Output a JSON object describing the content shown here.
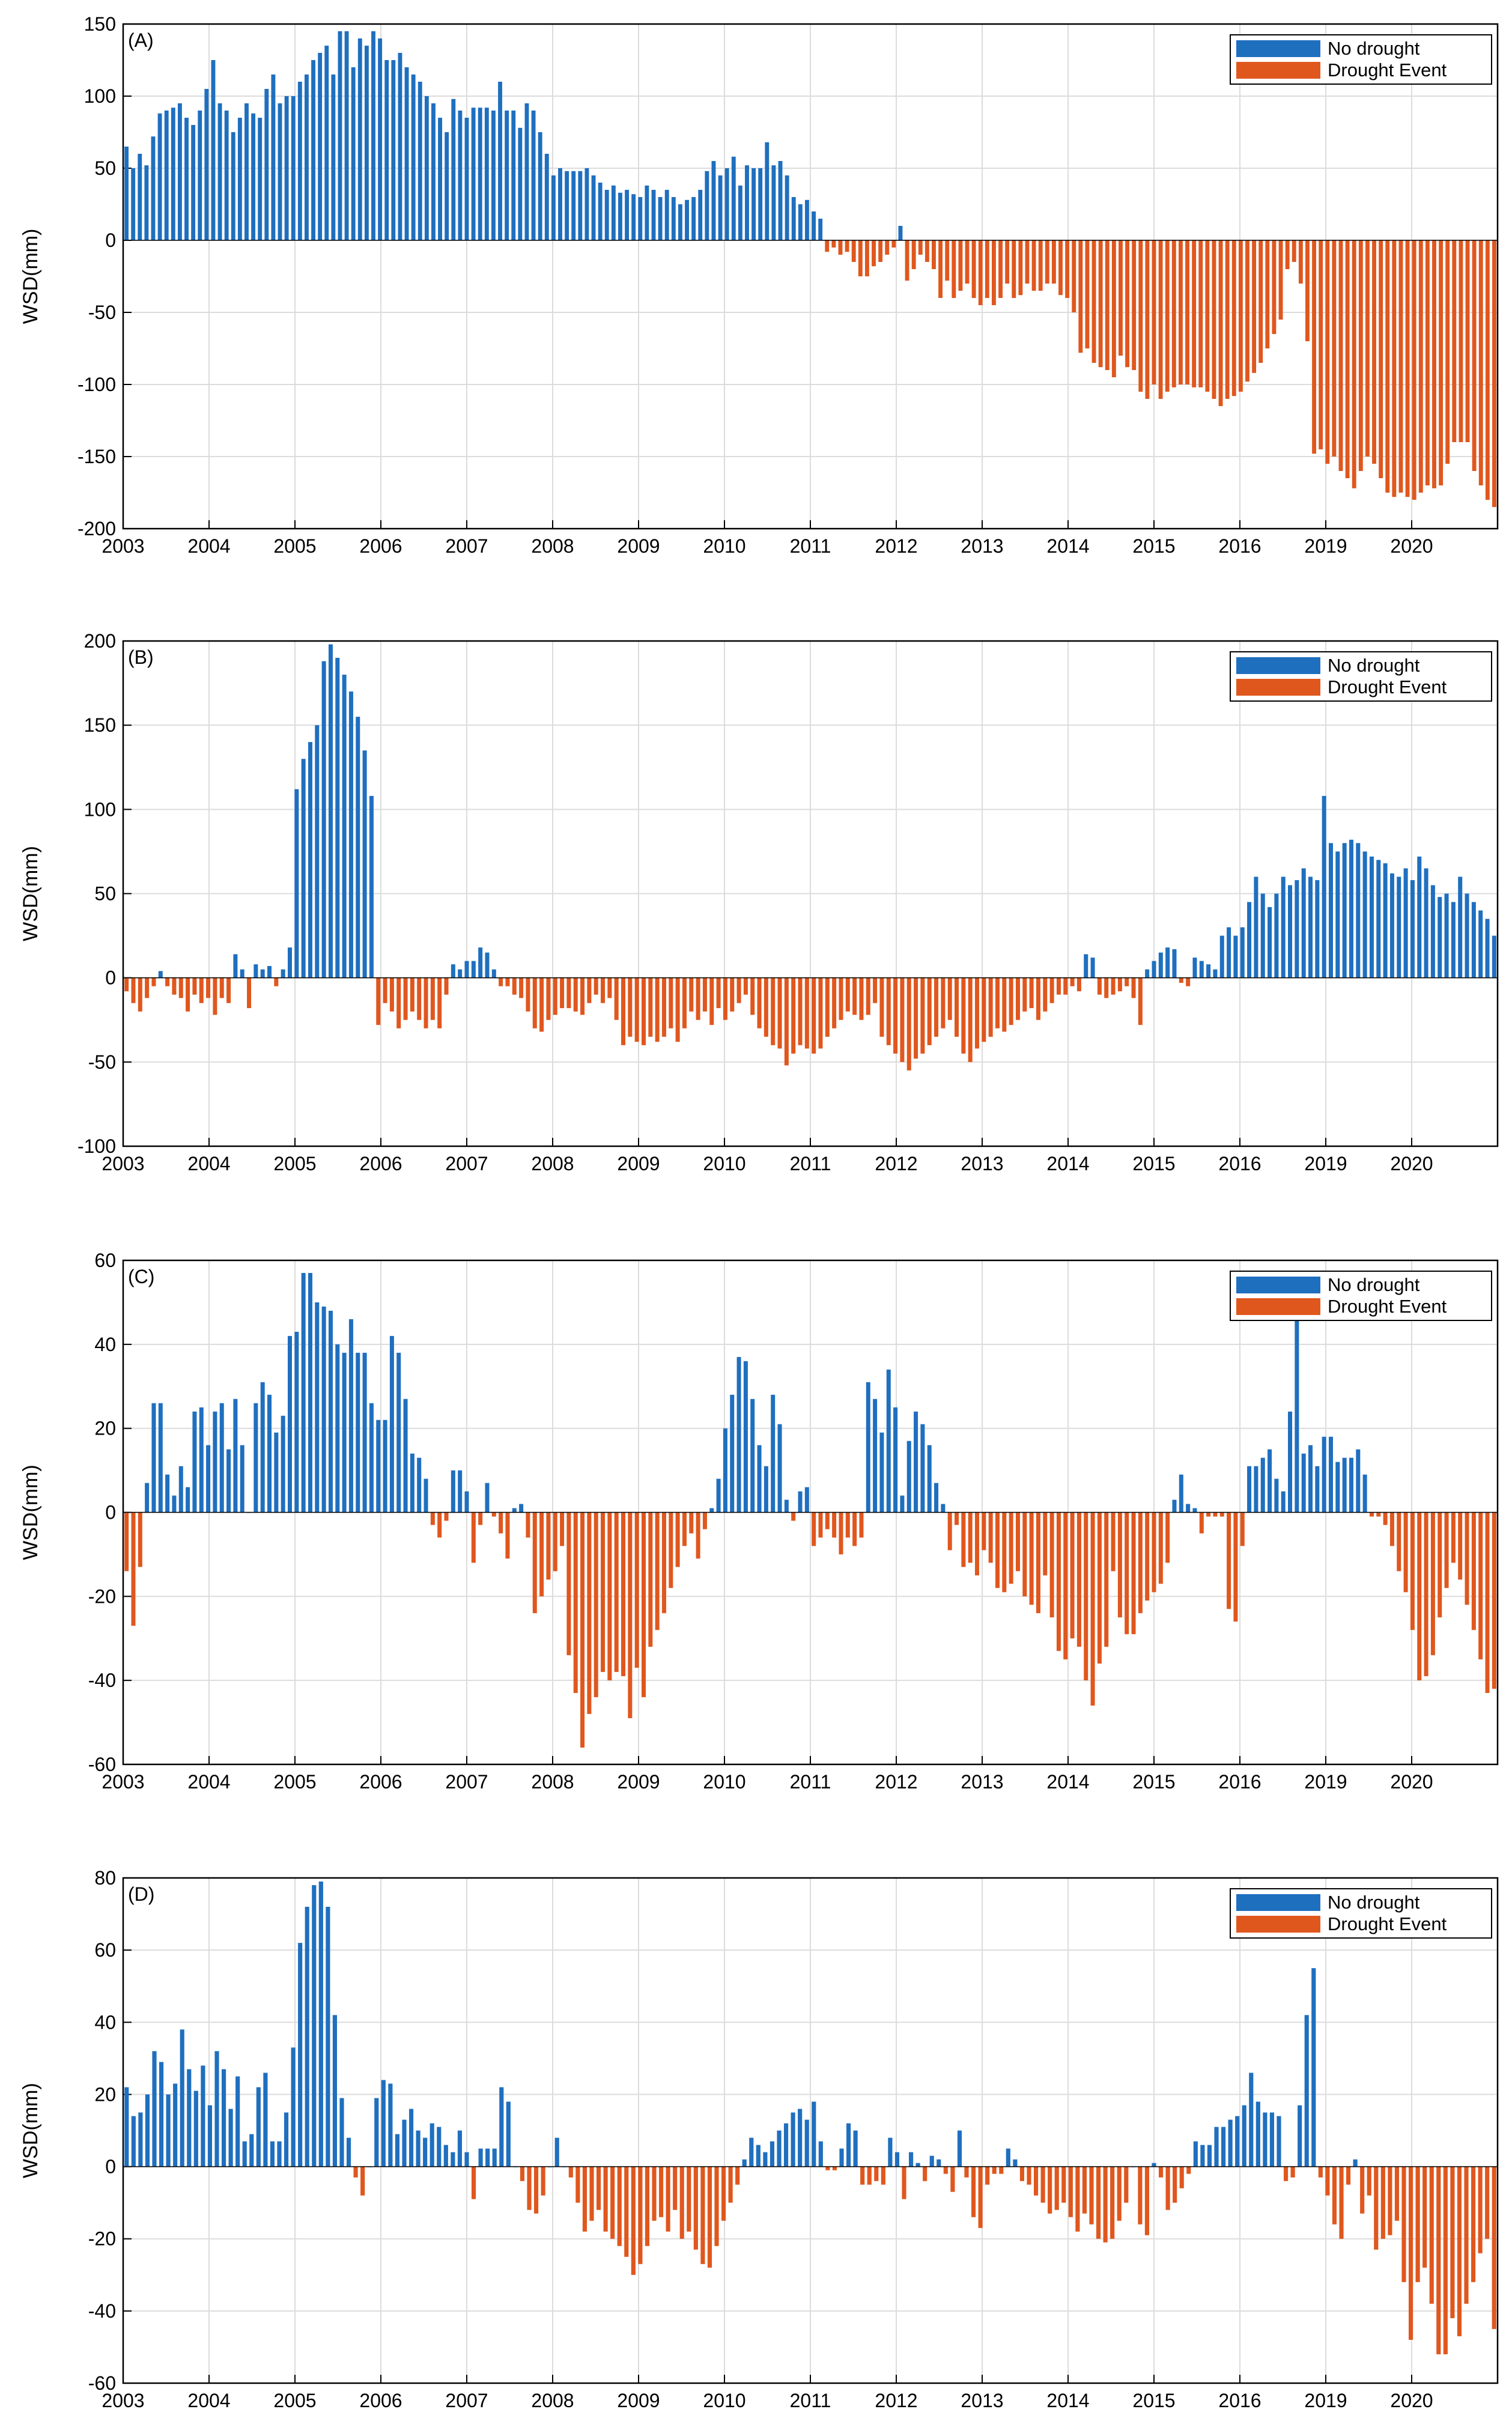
{
  "colors": {
    "no_drought": "#1f6fbf",
    "drought": "#e0571e",
    "grid": "#dcdcdc",
    "axis": "#000000"
  },
  "chart_data": [
    {
      "type": "bar",
      "panel_label": "(A)",
      "title": "",
      "xlabel": "",
      "ylabel": "WSD(mm)",
      "ylim": [
        -200,
        150
      ],
      "yticks": [
        150,
        100,
        50,
        0,
        -50,
        -100,
        -150,
        -200
      ],
      "xtick_labels": [
        "2003",
        "2004",
        "2005",
        "2006",
        "2007",
        "2008",
        "2009",
        "2010",
        "2011",
        "2012",
        "2013",
        "2014",
        "2015",
        "2016",
        "2019",
        "2020"
      ],
      "legend": {
        "position": "top-right",
        "entries": [
          "No drought",
          "Drought Event"
        ]
      },
      "series": [
        {
          "name": "WSD",
          "values": [
            65,
            50,
            60,
            52,
            72,
            88,
            90,
            92,
            95,
            85,
            80,
            90,
            105,
            125,
            95,
            90,
            75,
            85,
            95,
            88,
            85,
            105,
            115,
            95,
            100,
            100,
            110,
            115,
            125,
            130,
            135,
            115,
            145,
            145,
            120,
            140,
            135,
            145,
            140,
            125,
            125,
            130,
            120,
            115,
            110,
            100,
            95,
            85,
            75,
            98,
            90,
            85,
            92,
            92,
            92,
            90,
            110,
            90,
            90,
            78,
            95,
            90,
            75,
            60,
            45,
            50,
            48,
            48,
            48,
            50,
            45,
            40,
            35,
            38,
            33,
            35,
            32,
            30,
            38,
            35,
            30,
            35,
            30,
            25,
            28,
            30,
            35,
            48,
            55,
            45,
            50,
            58,
            38,
            52,
            50,
            50,
            68,
            52,
            55,
            45,
            30,
            25,
            28,
            20,
            15,
            -8,
            -5,
            -10,
            -8,
            -15,
            -25,
            -25,
            -18,
            -15,
            -10,
            -5,
            10,
            -28,
            -20,
            -10,
            -15,
            -20,
            -40,
            -28,
            -40,
            -35,
            -30,
            -40,
            -45,
            -40,
            -45,
            -40,
            -30,
            -40,
            -38,
            -30,
            -35,
            -35,
            -30,
            -30,
            -38,
            -40,
            -50,
            -78,
            -75,
            -85,
            -88,
            -90,
            -95,
            -80,
            -88,
            -90,
            -105,
            -110,
            -100,
            -110,
            -105,
            -102,
            -100,
            -100,
            -102,
            -102,
            -105,
            -110,
            -115,
            -110,
            -108,
            -105,
            -98,
            -92,
            -85,
            -75,
            -65,
            -55,
            -20,
            -15,
            -30,
            -70,
            -148,
            -145,
            -155,
            -150,
            -160,
            -165,
            -172,
            -160,
            -150,
            -155,
            -165,
            -175,
            -178,
            -175,
            -178,
            -180,
            -175,
            -170,
            -172,
            -170,
            -155,
            -140,
            -140,
            -140,
            -160,
            -170,
            -180,
            -185
          ]
        }
      ]
    },
    {
      "type": "bar",
      "panel_label": "(B)",
      "title": "",
      "xlabel": "",
      "ylabel": "WSD(mm)",
      "ylim": [
        -100,
        200
      ],
      "yticks": [
        200,
        150,
        100,
        50,
        0,
        -50,
        -100
      ],
      "xtick_labels": [
        "2003",
        "2004",
        "2005",
        "2006",
        "2007",
        "2008",
        "2009",
        "2010",
        "2011",
        "2012",
        "2013",
        "2014",
        "2015",
        "2016",
        "2019",
        "2020"
      ],
      "legend": {
        "position": "top-right",
        "entries": [
          "No drought",
          "Drought Event"
        ]
      },
      "series": [
        {
          "name": "WSD",
          "values": [
            -8,
            -15,
            -20,
            -12,
            -5,
            4,
            -5,
            -10,
            -12,
            -20,
            -10,
            -15,
            -12,
            -22,
            -12,
            -15,
            14,
            5,
            -18,
            8,
            5,
            7,
            -5,
            5,
            18,
            112,
            130,
            140,
            150,
            188,
            198,
            190,
            180,
            170,
            155,
            135,
            108,
            -28,
            -15,
            -20,
            -30,
            -25,
            -20,
            -25,
            -30,
            -25,
            -30,
            -10,
            8,
            5,
            10,
            10,
            18,
            15,
            5,
            -5,
            -5,
            -10,
            -12,
            -20,
            -30,
            -32,
            -25,
            -22,
            -18,
            -18,
            -20,
            -22,
            -15,
            -10,
            -15,
            -12,
            -25,
            -40,
            -35,
            -38,
            -40,
            -35,
            -38,
            -35,
            -30,
            -38,
            -30,
            -20,
            -25,
            -20,
            -28,
            -18,
            -25,
            -20,
            -15,
            -10,
            -22,
            -30,
            -35,
            -40,
            -42,
            -52,
            -45,
            -40,
            -42,
            -45,
            -42,
            -35,
            -30,
            -25,
            -20,
            -22,
            -25,
            -22,
            -15,
            -35,
            -40,
            -45,
            -50,
            -55,
            -48,
            -45,
            -40,
            -35,
            -30,
            -25,
            -35,
            -45,
            -50,
            -42,
            -38,
            -35,
            -30,
            -32,
            -28,
            -25,
            -20,
            -18,
            -25,
            -20,
            -15,
            -10,
            -10,
            -5,
            -8,
            14,
            12,
            -10,
            -12,
            -10,
            -8,
            -5,
            -12,
            -28,
            5,
            10,
            15,
            18,
            17,
            -3,
            -5,
            12,
            10,
            8,
            5,
            25,
            30,
            25,
            30,
            45,
            60,
            50,
            42,
            50,
            60,
            55,
            58,
            65,
            60,
            58,
            108,
            80,
            75,
            80,
            82,
            80,
            75,
            72,
            70,
            68,
            62,
            60,
            65,
            58,
            72,
            65,
            55,
            48,
            50,
            45,
            60,
            50,
            45,
            40,
            35,
            25
          ]
        }
      ]
    },
    {
      "type": "bar",
      "panel_label": "(C)",
      "title": "",
      "xlabel": "",
      "ylabel": "WSD(mm)",
      "ylim": [
        -60,
        60
      ],
      "yticks": [
        60,
        40,
        20,
        0,
        -20,
        -40,
        -60
      ],
      "xtick_labels": [
        "2003",
        "2004",
        "2005",
        "2006",
        "2007",
        "2008",
        "2009",
        "2010",
        "2011",
        "2012",
        "2013",
        "2014",
        "2015",
        "2016",
        "2019",
        "2020"
      ],
      "legend": {
        "position": "top-right",
        "entries": [
          "No drought",
          "Drought Event"
        ]
      },
      "series": [
        {
          "name": "WSD",
          "values": [
            -14,
            -27,
            -13,
            7,
            26,
            26,
            9,
            4,
            11,
            6,
            24,
            25,
            16,
            24,
            26,
            15,
            27,
            16,
            0,
            26,
            31,
            28,
            19,
            23,
            42,
            43,
            57,
            57,
            50,
            49,
            48,
            40,
            38,
            46,
            38,
            38,
            26,
            22,
            22,
            42,
            38,
            27,
            14,
            13,
            8,
            -3,
            -6,
            -2,
            10,
            10,
            5,
            -12,
            -3,
            7,
            -1,
            -5,
            -11,
            1,
            2,
            -6,
            -24,
            -20,
            -16,
            -14,
            -8,
            -34,
            -43,
            -56,
            -48,
            -44,
            -38,
            -40,
            -38,
            -39,
            -49,
            -37,
            -44,
            -32,
            -28,
            -24,
            -18,
            -13,
            -8,
            -5,
            -11,
            -4,
            1,
            8,
            20,
            28,
            37,
            36,
            27,
            16,
            11,
            28,
            21,
            3,
            -2,
            5,
            6,
            -8,
            -6,
            -4,
            -6,
            -10,
            -6,
            -8,
            -6,
            31,
            27,
            19,
            34,
            25,
            4,
            17,
            24,
            21,
            16,
            7,
            2,
            -9,
            -3,
            -13,
            -12,
            -15,
            -9,
            -12,
            -18,
            -19,
            -17,
            -14,
            -20,
            -22,
            -24,
            -15,
            -25,
            -33,
            -35,
            -30,
            -32,
            -40,
            -46,
            -36,
            -32,
            -14,
            -25,
            -29,
            -29,
            -24,
            -21,
            -19,
            -17,
            -12,
            3,
            9,
            2,
            1,
            -5,
            -1,
            -1,
            -1,
            -23,
            -26,
            -8,
            11,
            11,
            13,
            15,
            8,
            5,
            24,
            48,
            14,
            16,
            11,
            18,
            18,
            12,
            13,
            13,
            15,
            9,
            -1,
            -1,
            -3,
            -8,
            -14,
            -19,
            -28,
            -40,
            -39,
            -34,
            -25,
            -18,
            -12,
            -16,
            -22,
            -28,
            -35,
            -43,
            -42
          ]
        }
      ]
    },
    {
      "type": "bar",
      "panel_label": "(D)",
      "title": "",
      "xlabel": "",
      "ylabel": "WSD(mm)",
      "ylim": [
        -60,
        80
      ],
      "yticks": [
        80,
        60,
        40,
        20,
        0,
        -20,
        -40,
        -60
      ],
      "xtick_labels": [
        "2003",
        "2004",
        "2005",
        "2006",
        "2007",
        "2008",
        "2009",
        "2010",
        "2011",
        "2012",
        "2013",
        "2014",
        "2015",
        "2016",
        "2019",
        "2020"
      ],
      "legend": {
        "position": "top-right",
        "entries": [
          "No drought",
          "Drought Event"
        ]
      },
      "series": [
        {
          "name": "WSD",
          "values": [
            22,
            14,
            15,
            20,
            32,
            29,
            20,
            23,
            38,
            27,
            21,
            28,
            17,
            32,
            27,
            16,
            25,
            7,
            9,
            22,
            26,
            7,
            7,
            15,
            33,
            62,
            72,
            78,
            79,
            72,
            42,
            19,
            8,
            -3,
            -8,
            0,
            19,
            24,
            23,
            9,
            13,
            16,
            10,
            8,
            12,
            11,
            6,
            4,
            10,
            4,
            -9,
            5,
            5,
            5,
            22,
            18,
            0,
            -4,
            -12,
            -13,
            -8,
            0,
            8,
            0,
            -3,
            -10,
            -18,
            -15,
            -12,
            -18,
            -20,
            -22,
            -25,
            -30,
            -27,
            -22,
            -15,
            -14,
            -18,
            -12,
            -20,
            -18,
            -23,
            -27,
            -28,
            -22,
            -15,
            -10,
            -5,
            2,
            8,
            6,
            4,
            7,
            10,
            12,
            15,
            16,
            13,
            18,
            7,
            -1,
            -1,
            5,
            12,
            10,
            -5,
            -5,
            -4,
            -5,
            8,
            4,
            -9,
            4,
            1,
            -4,
            3,
            2,
            -2,
            -7,
            10,
            -3,
            -14,
            -17,
            -5,
            -2,
            -2,
            5,
            2,
            -4,
            -5,
            -8,
            -10,
            -13,
            -12,
            -10,
            -14,
            -18,
            -13,
            -16,
            -20,
            -21,
            -20,
            -15,
            -10,
            0,
            -16,
            -19,
            1,
            -3,
            -12,
            -10,
            -6,
            -2,
            7,
            6,
            6,
            11,
            11,
            13,
            14,
            17,
            26,
            18,
            15,
            15,
            14,
            -4,
            -3,
            17,
            42,
            55,
            -3,
            -8,
            -16,
            -20,
            -5,
            2,
            -13,
            -8,
            -23,
            -20,
            -19,
            -15,
            -32,
            -48,
            -32,
            -28,
            -38,
            -52,
            -52,
            -42,
            -47,
            -38,
            -32,
            -24,
            -20,
            -45
          ]
        }
      ]
    }
  ]
}
